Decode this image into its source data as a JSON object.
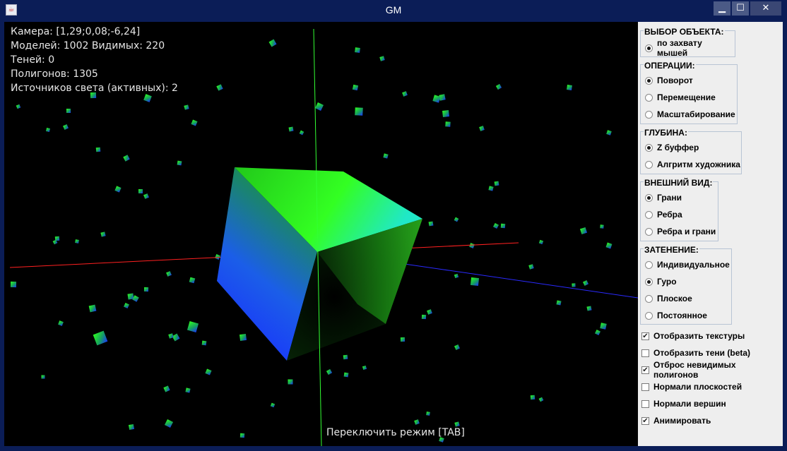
{
  "window": {
    "title": "GM",
    "minimize_glyph": "▁",
    "maximize_glyph": "☐",
    "close_glyph": "✕"
  },
  "hud": {
    "camera": "Камера: [1,29;0,08;-6,24]",
    "models": "Моделей: 1002  Видимых: 220",
    "shadows": "Теней: 0",
    "polygons": "Полигонов: 1305",
    "lights": "Источников света (активных): 2",
    "hint": "Переключить режим [TAB]"
  },
  "panel": {
    "groups": [
      {
        "title": "ВЫБОР ОБЪЕКТА:",
        "options": [
          {
            "label": "по захвату мышей",
            "selected": true
          }
        ]
      },
      {
        "title": "ОПЕРАЦИИ:",
        "options": [
          {
            "label": "Поворот",
            "selected": true
          },
          {
            "label": "Перемещение",
            "selected": false
          },
          {
            "label": "Масштабирование",
            "selected": false
          }
        ]
      },
      {
        "title": "ГЛУБИНА:",
        "options": [
          {
            "label": "Z буффер",
            "selected": true
          },
          {
            "label": "Алгритм художника",
            "selected": false
          }
        ]
      },
      {
        "title": "ВНЕШНИЙ ВИД:",
        "options": [
          {
            "label": "Грани",
            "selected": true
          },
          {
            "label": "Ребра",
            "selected": false
          },
          {
            "label": "Ребра и грани",
            "selected": false
          }
        ]
      },
      {
        "title": "ЗАТЕНЕНИЕ:",
        "options": [
          {
            "label": "Индивидуальное",
            "selected": false
          },
          {
            "label": "Гуро",
            "selected": true
          },
          {
            "label": "Плоское",
            "selected": false
          },
          {
            "label": "Постоянное",
            "selected": false
          }
        ]
      }
    ],
    "checkboxes": [
      {
        "label": "Отобразить текстуры",
        "checked": true
      },
      {
        "label": "Отобразить тени (beta)",
        "checked": false
      },
      {
        "label": "Отброс невидимых полигонов",
        "checked": true
      },
      {
        "label": "Нормали плоскостей",
        "checked": false
      },
      {
        "label": "Нормали вершин",
        "checked": false
      },
      {
        "label": "Анимировать",
        "checked": true
      }
    ]
  }
}
